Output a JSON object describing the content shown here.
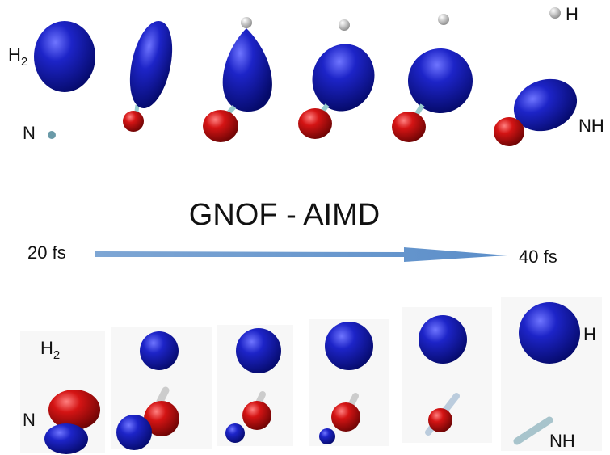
{
  "top_row": {
    "h2_label": {
      "base": "H",
      "sub": "2"
    },
    "n_label": "N",
    "h_label": "H",
    "nh_label": "NH"
  },
  "middle": {
    "title": "GNOF - AIMD",
    "start_time": "20 fs",
    "end_time": "40 fs"
  },
  "bottom_row": {
    "h2_label": {
      "base": "H",
      "sub": "2"
    },
    "n_label": "N",
    "h_label": "H",
    "nh_label": "NH"
  }
}
